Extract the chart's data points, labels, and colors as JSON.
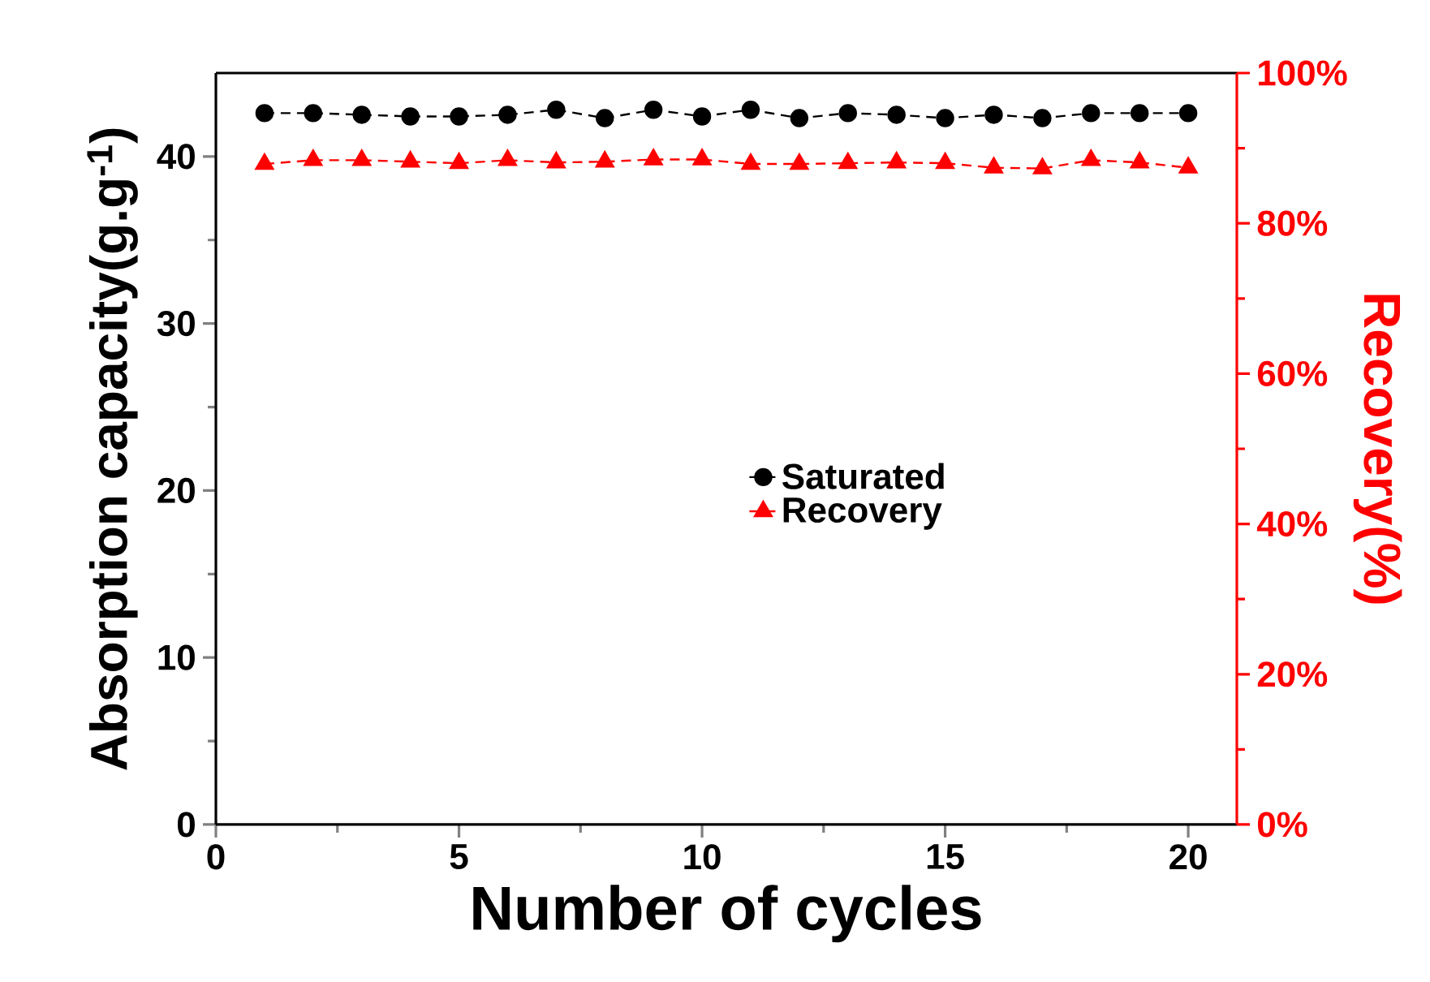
{
  "chart_data": {
    "type": "line",
    "xlabel": "Number of cycles",
    "ylabel": "Absorption capacity(g.g$^{-1}$)",
    "y2label": "Recovery(%)",
    "x": [
      1,
      2,
      3,
      4,
      5,
      6,
      7,
      8,
      9,
      10,
      11,
      12,
      13,
      14,
      15,
      16,
      17,
      18,
      19,
      20
    ],
    "xlim": [
      0,
      21
    ],
    "xticks": [
      0,
      5,
      10,
      15,
      20
    ],
    "ylim": [
      0,
      45
    ],
    "yticks": [
      0,
      10,
      20,
      30,
      40
    ],
    "y2lim": [
      0,
      100
    ],
    "y2ticks": [
      {
        "value": 0,
        "label": "0%"
      },
      {
        "value": 20,
        "label": "20%"
      },
      {
        "value": 40,
        "label": "40%"
      },
      {
        "value": 60,
        "label": "60%"
      },
      {
        "value": 80,
        "label": "80%"
      },
      {
        "value": 100,
        "label": "100%"
      }
    ],
    "series": [
      {
        "name": "Saturated",
        "color": "#000000",
        "marker": "circle",
        "line_style": "dashed",
        "values": [
          42.6,
          42.6,
          42.5,
          42.4,
          42.4,
          42.5,
          42.8,
          42.3,
          42.8,
          42.4,
          42.8,
          42.3,
          42.6,
          42.5,
          42.3,
          42.5,
          42.3,
          42.6,
          42.6,
          42.6
        ]
      },
      {
        "name": "Recovery",
        "color": "#ff0000",
        "marker": "triangle",
        "line_style": "dashed",
        "axis": "y2",
        "values": [
          87.9,
          88.4,
          88.4,
          88.2,
          88.0,
          88.4,
          88.1,
          88.2,
          88.5,
          88.5,
          87.9,
          87.9,
          88.0,
          88.1,
          88.0,
          87.4,
          87.3,
          88.4,
          88.1,
          87.4
        ]
      }
    ],
    "legend": "center",
    "grid": false
  }
}
